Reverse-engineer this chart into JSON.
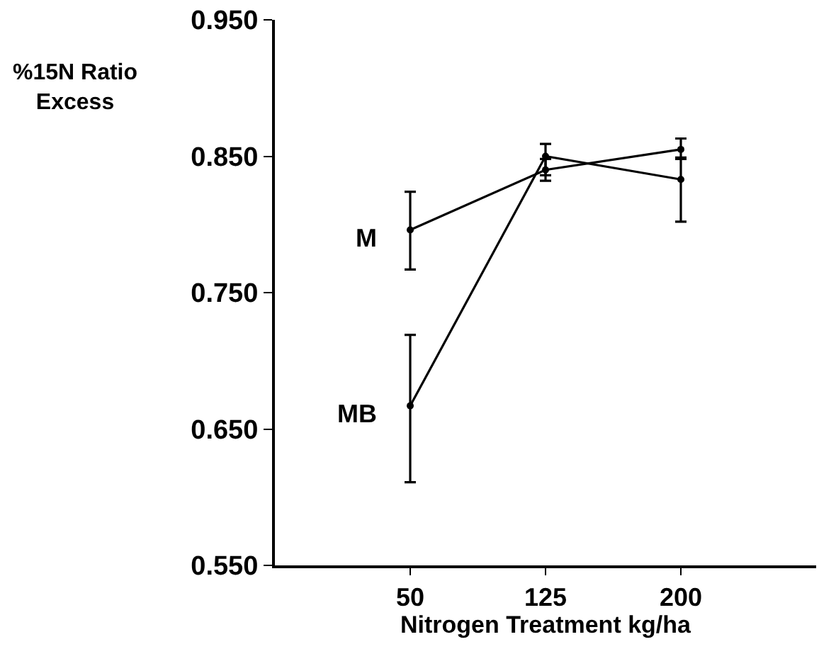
{
  "chart_data": {
    "type": "line",
    "xlabel": "Nitrogen Treatment kg/ha",
    "ylabel": "%15N Ratio Excess",
    "x": [
      50,
      125,
      200
    ],
    "series": [
      {
        "name": "M",
        "color": "#000000",
        "values": [
          0.796,
          0.84,
          0.855
        ],
        "errors": [
          [
            0.767,
            0.824
          ],
          [
            0.832,
            0.848
          ],
          [
            0.848,
            0.863
          ]
        ]
      },
      {
        "name": "MB",
        "color": "#000000",
        "values": [
          0.667,
          0.85,
          0.833
        ],
        "errors": [
          [
            0.611,
            0.719
          ],
          [
            0.836,
            0.859
          ],
          [
            0.802,
            0.849
          ]
        ]
      }
    ],
    "xlim": [
      -25,
      275
    ],
    "xticks": [
      50,
      125,
      200
    ],
    "ylim": [
      0.55,
      0.95
    ],
    "yticks": [
      {
        "value": 0.55,
        "label": "0.550"
      },
      {
        "value": 0.65,
        "label": "0.650"
      },
      {
        "value": 0.75,
        "label": "0.750"
      },
      {
        "value": 0.85,
        "label": "0.850"
      },
      {
        "value": 0.95,
        "label": "0.950"
      }
    ],
    "grid": false,
    "legend": false,
    "marker": "circle",
    "line_style": "solid"
  }
}
